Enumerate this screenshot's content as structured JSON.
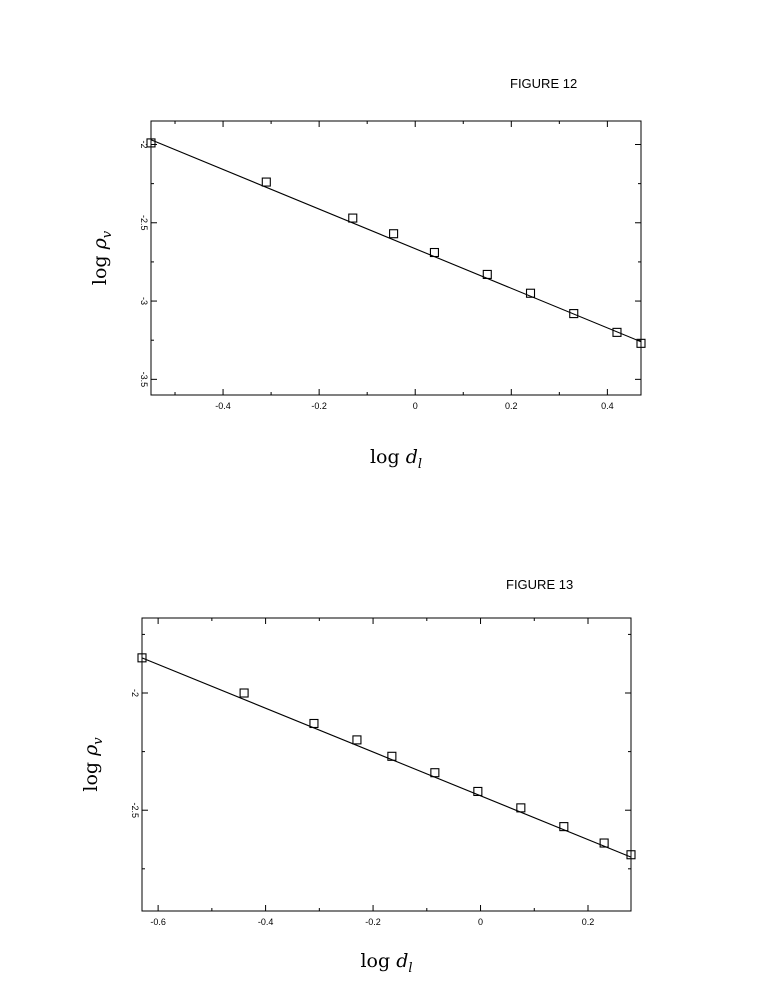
{
  "chart_data": [
    {
      "type": "scatter",
      "title": "FIGURE 12",
      "xlabel": "log d_l",
      "ylabel": "log ρ_v",
      "xlabel_parts": {
        "fn": "log",
        "var": "d",
        "sub": "l"
      },
      "ylabel_parts": {
        "fn": "log",
        "var": "ρ",
        "sub": "v"
      },
      "xlim": [
        -0.55,
        0.47
      ],
      "ylim": [
        -3.6,
        -1.85
      ],
      "x_ticks": [
        -0.4,
        -0.2,
        0,
        0.2,
        0.4
      ],
      "x_tick_labels": [
        "-0.4",
        "-0.2",
        "0",
        "0.2",
        "0.4"
      ],
      "y_ticks": [
        -2,
        -2.5,
        -3,
        -3.5
      ],
      "y_tick_labels": [
        "-2",
        "-2.5",
        "-3",
        "-3.5"
      ],
      "series": [
        {
          "marker": "square",
          "x": [
            -0.55,
            -0.31,
            -0.13,
            -0.045,
            0.04,
            0.15,
            0.24,
            0.33,
            0.42,
            0.47
          ],
          "y": [
            -1.99,
            -2.24,
            -2.47,
            -2.57,
            -2.69,
            -2.83,
            -2.95,
            -3.08,
            -3.2,
            -3.27
          ]
        }
      ],
      "fit_line": {
        "x": [
          -0.55,
          0.47
        ],
        "y": [
          -1.97,
          -3.26
        ]
      },
      "grid": false
    },
    {
      "type": "scatter",
      "title": "FIGURE 13",
      "xlabel": "log d_l",
      "ylabel": "log ρ_v",
      "xlabel_parts": {
        "fn": "log",
        "var": "d",
        "sub": "l"
      },
      "ylabel_parts": {
        "fn": "log",
        "var": "ρ",
        "sub": "v"
      },
      "xlim": [
        -0.63,
        0.28
      ],
      "ylim": [
        -2.93,
        -1.68
      ],
      "x_ticks": [
        -0.6,
        -0.4,
        -0.2,
        0,
        0.2
      ],
      "x_tick_labels": [
        "-0.6",
        "-0.4",
        "-0.2",
        "0",
        "0.2"
      ],
      "y_ticks": [
        -2,
        -2.5
      ],
      "y_tick_labels": [
        "-2",
        "-2.5"
      ],
      "series": [
        {
          "marker": "square",
          "x": [
            -0.63,
            -0.44,
            -0.31,
            -0.23,
            -0.165,
            -0.085,
            -0.005,
            0.075,
            0.155,
            0.23,
            0.28
          ],
          "y": [
            -1.85,
            -2.0,
            -2.13,
            -2.2,
            -2.27,
            -2.34,
            -2.42,
            -2.49,
            -2.57,
            -2.64,
            -2.69
          ]
        }
      ],
      "fit_line": {
        "x": [
          -0.63,
          0.28
        ],
        "y": [
          -1.85,
          -2.7
        ]
      },
      "grid": false
    }
  ]
}
